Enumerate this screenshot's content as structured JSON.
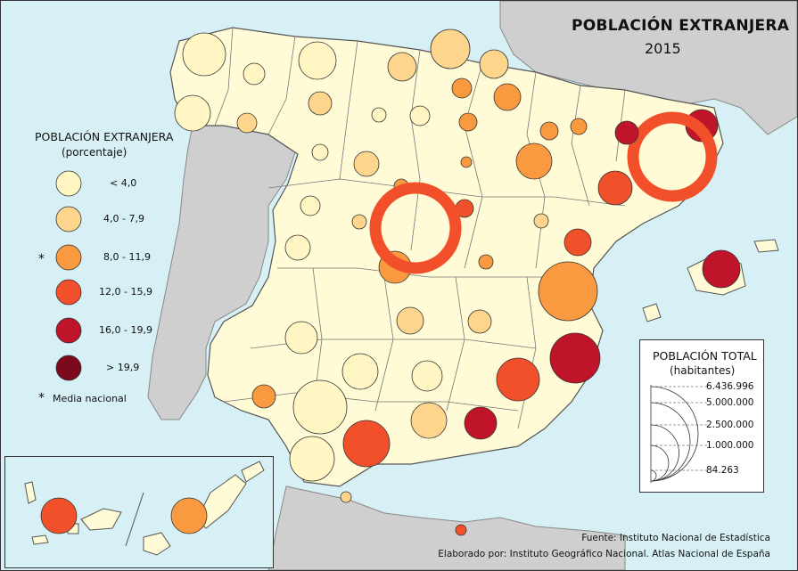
{
  "title": "POBLACIÓN EXTRANJERA",
  "year": "2015",
  "legend": {
    "title": "POBLACIÓN EXTRANJERA",
    "subtitle": "(porcentaje)",
    "classes": [
      {
        "label": "< 4,0",
        "color": "#fff6c4"
      },
      {
        "label": "4,0 - 7,9",
        "color": "#fdd58c"
      },
      {
        "label": "8,0 - 11,9",
        "color": "#f99a40",
        "national_mean": true
      },
      {
        "label": "12,0 - 15,9",
        "color": "#f2502a"
      },
      {
        "label": "16,0 - 19,9",
        "color": "#c0142a"
      },
      {
        "label": "> 19,9",
        "color": "#7a0a1c"
      }
    ],
    "mean_marker": "*",
    "mean_note": "Media nacional"
  },
  "size_legend": {
    "title": "POBLACIÓN TOTAL",
    "subtitle": "(habitantes)",
    "values": [
      "6.436.996",
      "5.000.000",
      "2.500.000",
      "1.000.000",
      "84.263"
    ]
  },
  "source": "Fuente: Instituto Nacional de Estadística",
  "credit": "Elaborado por: Instituto Geográfico Nacional. Atlas Nacional de España",
  "colors": {
    "sea": "#d6f0f6",
    "land_spain": "#fffbd6",
    "land_other": "#cfcfcf",
    "border": "#555555"
  }
}
